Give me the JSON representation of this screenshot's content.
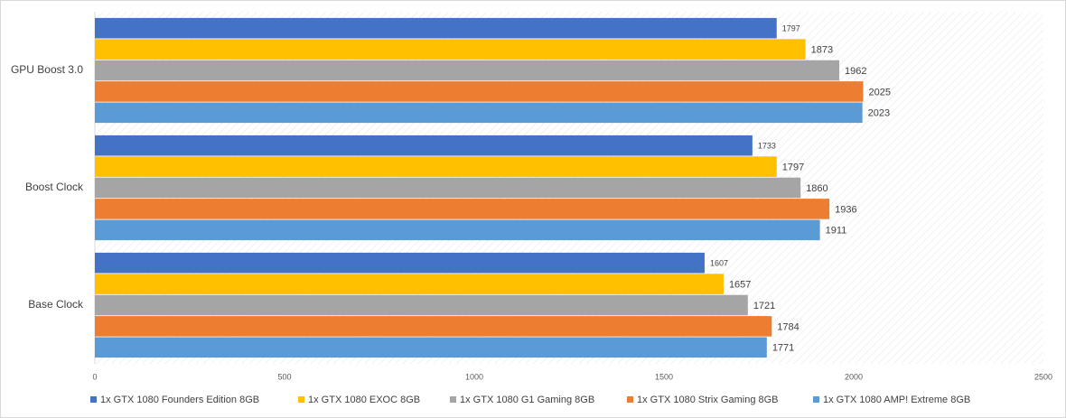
{
  "chart_data": {
    "type": "bar",
    "orientation": "horizontal",
    "categories": [
      "GPU Boost 3.0",
      "Boost Clock",
      "Base Clock"
    ],
    "series": [
      {
        "name": "1x GTX 1080 Founders Edition 8GB",
        "color": "#4472c4",
        "values": [
          1797,
          1733,
          1607
        ]
      },
      {
        "name": "1x GTX 1080 EXOC 8GB",
        "color": "#ffc000",
        "values": [
          1873,
          1797,
          1657
        ]
      },
      {
        "name": "1x GTX 1080 G1 Gaming 8GB",
        "color": "#a5a5a5",
        "values": [
          1962,
          1860,
          1721
        ]
      },
      {
        "name": "1x GTX 1080 Strix Gaming 8GB",
        "color": "#ed7d31",
        "values": [
          2025,
          1936,
          1784
        ]
      },
      {
        "name": "1x GTX 1080 AMP! Extreme 8GB",
        "color": "#5b9bd5",
        "values": [
          2023,
          1911,
          1771
        ]
      }
    ],
    "xlim": [
      0,
      2500
    ],
    "xticks": [
      0,
      500,
      1000,
      1500,
      2000,
      2500
    ],
    "legend": "bottom"
  }
}
